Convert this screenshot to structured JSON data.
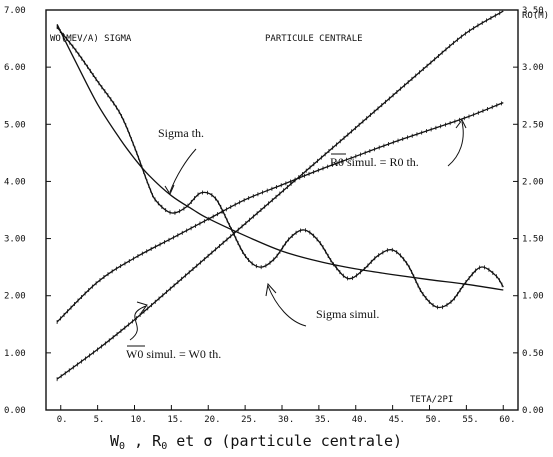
{
  "chart_data": {
    "type": "line",
    "left_axis_label": "WO(MEV/A) SIGMA",
    "right_axis_label": "RO(M)",
    "inner_title": "PARTICULE CENTRALE",
    "xlabel": "TETA/2PI",
    "caption": {
      "text_before": "W",
      "sub1": "0",
      "mid": " , R",
      "sub2": "0",
      "text_after": " et σ (particule centrale)"
    },
    "xlim": [
      -2,
      62
    ],
    "ylim_left": [
      0,
      7
    ],
    "ylim_right": [
      0,
      3.5
    ],
    "x_ticks": [
      "0.",
      "5.",
      "10.",
      "15.",
      "20.",
      "25.",
      "30.",
      "35.",
      "40.",
      "45.",
      "50.",
      "55.",
      "60."
    ],
    "y_left_ticks": [
      "0.00",
      "1.00",
      "2.00",
      "3.00",
      "4.00",
      "5.00",
      "6.00",
      "7.00"
    ],
    "y_right_ticks": [
      "0.00",
      "0.50",
      "1.00",
      "1.50",
      "2.00",
      "2.50",
      "3.00",
      "3.50"
    ],
    "annotations": {
      "sigma_th": "Sigma th.",
      "r0": "R0 simul. = R0 th.",
      "sigma_simul": "Sigma simul.",
      "w0": "W0 simul. = W0 th."
    },
    "series": [
      {
        "axis": "left",
        "x": [
          -0.5,
          2,
          5,
          8,
          10,
          12,
          15,
          18,
          20,
          25,
          30,
          35,
          40,
          45,
          50,
          55,
          60
        ],
        "values": [
          6.75,
          6.1,
          5.35,
          4.75,
          4.4,
          4.1,
          3.75,
          3.5,
          3.35,
          3.05,
          2.78,
          2.6,
          2.47,
          2.37,
          2.28,
          2.2,
          2.1
        ]
      },
      {
        "axis": "left",
        "x": [
          -0.5,
          2,
          5,
          8,
          10,
          12,
          13,
          15,
          17,
          19,
          21,
          23,
          25,
          27,
          29,
          31,
          33,
          35,
          37,
          39,
          41,
          43,
          45,
          47,
          49,
          51,
          53,
          55,
          57,
          59,
          60
        ],
        "values": [
          6.7,
          6.3,
          5.75,
          5.2,
          4.6,
          3.9,
          3.65,
          3.45,
          3.55,
          3.8,
          3.7,
          3.2,
          2.7,
          2.5,
          2.65,
          3.0,
          3.15,
          2.95,
          2.55,
          2.3,
          2.45,
          2.7,
          2.8,
          2.55,
          2.05,
          1.8,
          1.9,
          2.25,
          2.5,
          2.35,
          2.15
        ]
      },
      {
        "axis": "right",
        "x": [
          -0.5,
          5,
          10,
          15,
          20,
          25,
          30,
          35,
          40,
          45,
          50,
          55,
          60
        ],
        "values": [
          0.77,
          1.12,
          1.33,
          1.5,
          1.67,
          1.84,
          1.97,
          2.1,
          2.22,
          2.34,
          2.45,
          2.56,
          2.69
        ]
      },
      {
        "axis": "right",
        "x": [
          -0.5,
          5,
          10,
          15,
          20,
          25,
          30,
          35,
          40,
          45,
          50,
          55,
          60
        ],
        "values": [
          0.27,
          0.53,
          0.79,
          1.07,
          1.35,
          1.63,
          1.91,
          2.19,
          2.47,
          2.75,
          3.03,
          3.3,
          3.49
        ]
      }
    ]
  }
}
